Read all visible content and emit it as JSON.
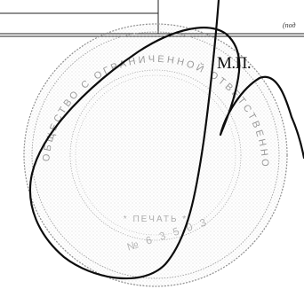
{
  "document": {
    "stamp_place_label": "М.П.",
    "field_hint": "(под"
  },
  "seal": {
    "color": "#8a8a8a",
    "text": "ОБЩЕСТВО С ОГРАНИЧЕННОЙ ОТВЕТСТВЕННОСТЬЮ * ПЕЧАТЬ *"
  },
  "signature": {
    "color": "#0d0d0d"
  }
}
